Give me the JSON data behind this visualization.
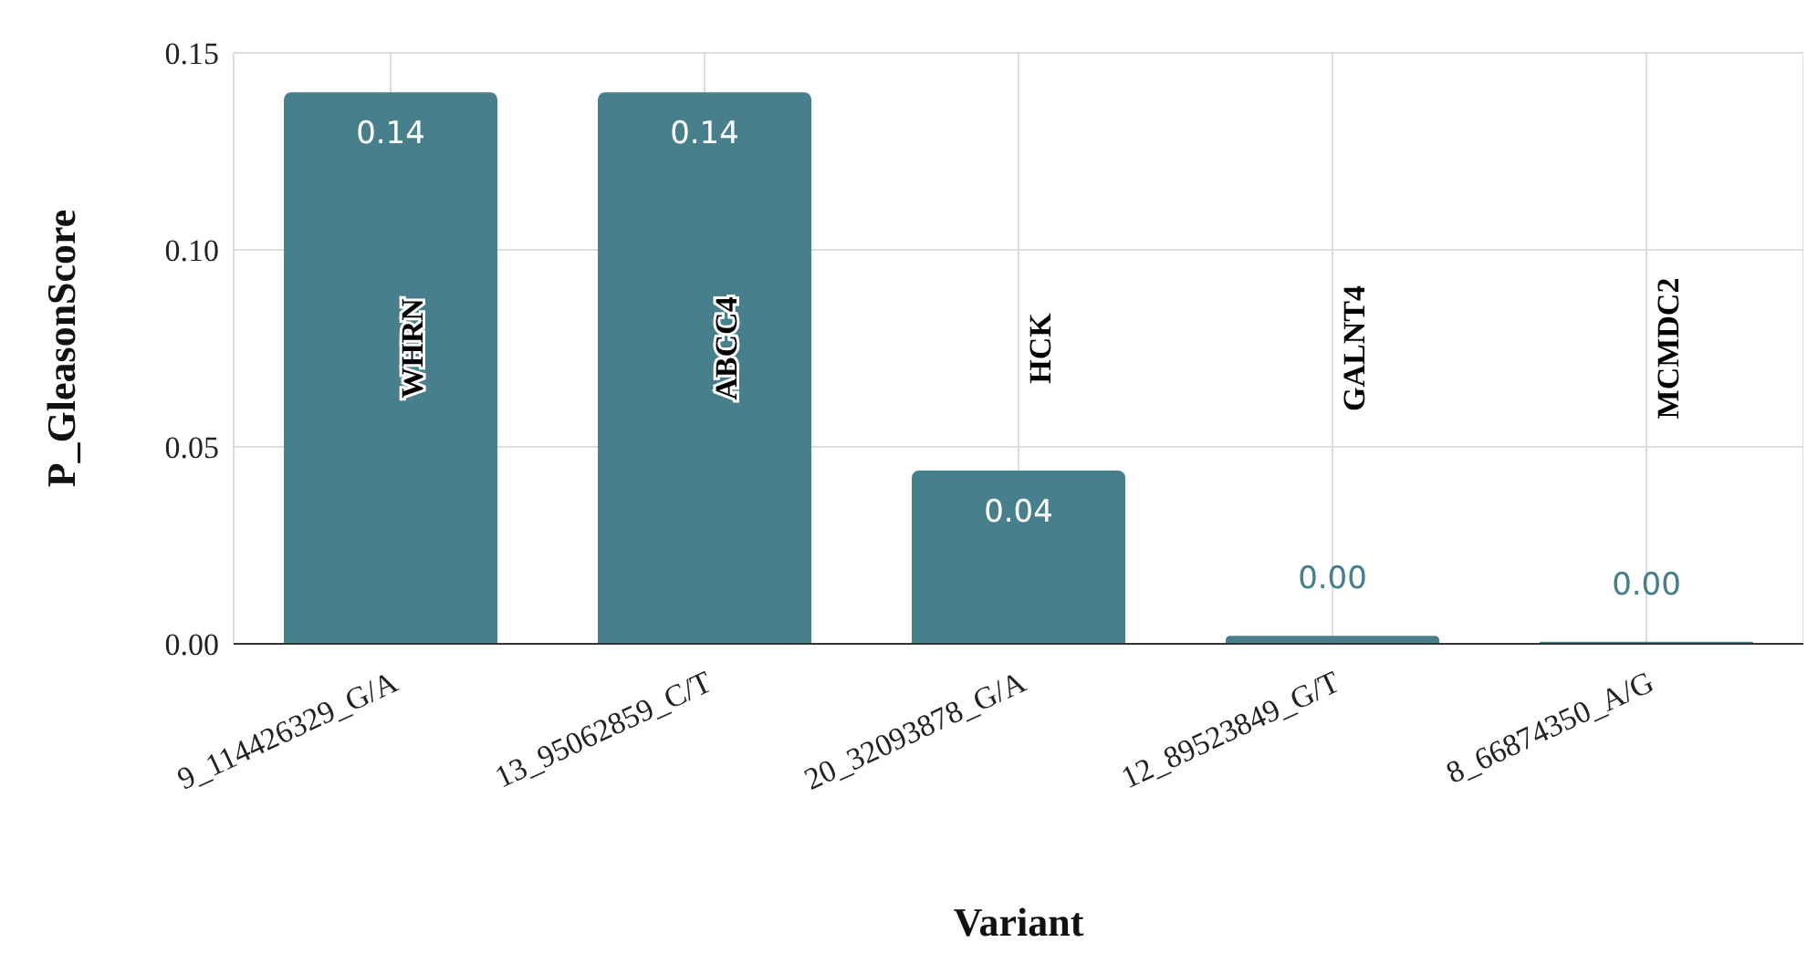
{
  "chart_data": {
    "type": "bar",
    "xlabel": "Variant",
    "ylabel": "P_GleasonScore",
    "categories": [
      "9_114426329_G/A",
      "13_95062859_C/T",
      "20_32093878_G/A",
      "12_89523849_G/T",
      "8_66874350_A/G"
    ],
    "values": [
      0.14,
      0.14,
      0.044,
      0.002,
      0.0005
    ],
    "value_labels": [
      "0.14",
      "0.14",
      "0.04",
      "0.00",
      "0.00"
    ],
    "color": "#477f8c",
    "ylim": [
      0,
      0.15
    ],
    "yticks": [
      {
        "value": 0,
        "label": "0.00"
      },
      {
        "value": 0.05,
        "label": "0.05"
      },
      {
        "value": 0.1,
        "label": "0.10"
      },
      {
        "value": 0.15,
        "label": "0.15"
      }
    ],
    "grid": true,
    "annotations": [
      "WHRN",
      "ABCC4",
      "HCK",
      "GALNT4",
      "MCMDC2"
    ]
  }
}
